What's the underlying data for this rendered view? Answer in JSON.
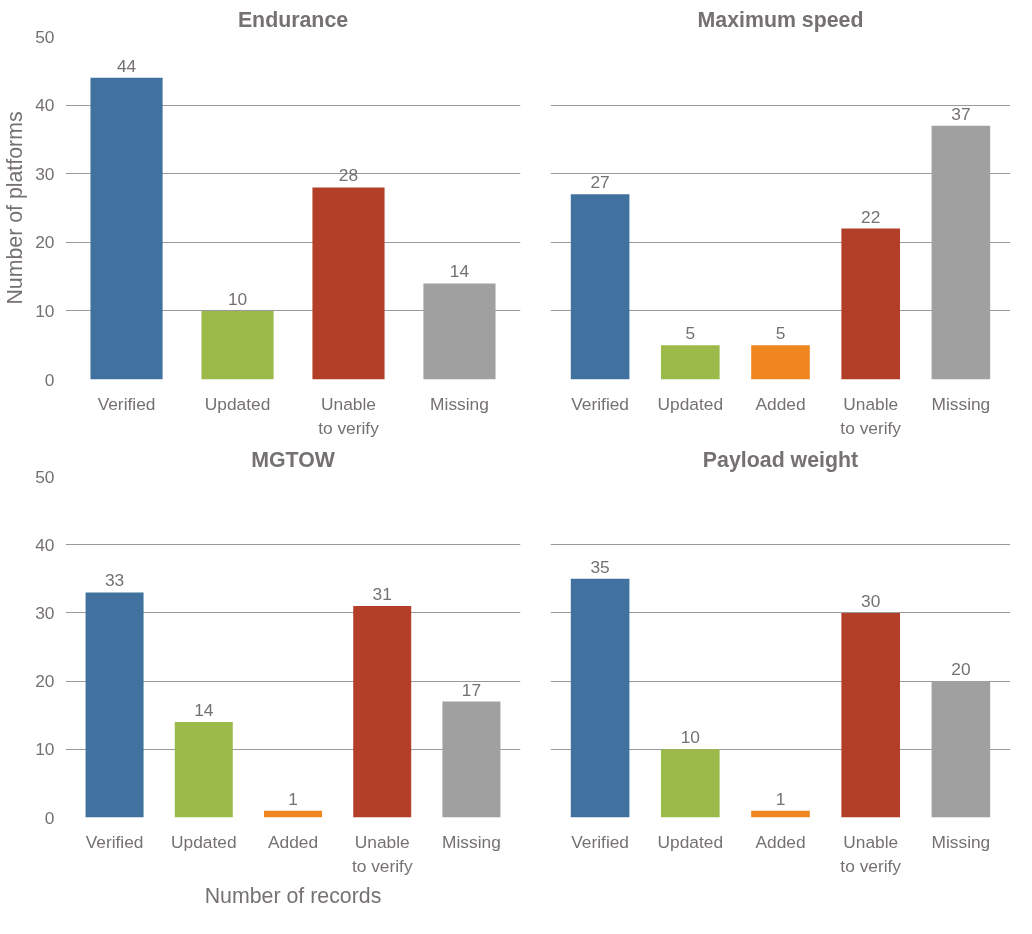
{
  "chart_data": [
    {
      "type": "bar",
      "title": "Endurance",
      "ylabel": "Number of platforms",
      "categories": [
        "Verified",
        "Updated",
        "Unable\nto verify",
        "Missing"
      ],
      "values": [
        44,
        10,
        28,
        14
      ],
      "colors": [
        "#41729f",
        "#9bba4a",
        "#b43f28",
        "#a0a0a0"
      ],
      "ylim": [
        0,
        50
      ],
      "yticks": [
        0,
        10,
        20,
        30,
        40,
        50
      ],
      "grid": "y",
      "data_labels": true
    },
    {
      "type": "bar",
      "title": "Maximum speed",
      "categories": [
        "Verified",
        "Updated",
        "Added",
        "Unable\nto verify",
        "Missing"
      ],
      "values": [
        27,
        5,
        5,
        22,
        37
      ],
      "colors": [
        "#41729f",
        "#9bba4a",
        "#f0861f",
        "#b43f28",
        "#a0a0a0"
      ],
      "ylim": [
        0,
        50
      ],
      "yticks": [
        0,
        10,
        20,
        30,
        40,
        50
      ],
      "grid": "y",
      "data_labels": true,
      "tick_labels": "x"
    },
    {
      "type": "bar",
      "title": "MGTOW",
      "xlabel": "Number of records",
      "categories": [
        "Verified",
        "Updated",
        "Added",
        "Unable\nto verify",
        "Missing"
      ],
      "values": [
        33,
        14,
        1,
        31,
        17
      ],
      "colors": [
        "#41729f",
        "#9bba4a",
        "#f0861f",
        "#b43f28",
        "#a0a0a0"
      ],
      "ylim": [
        0,
        50
      ],
      "yticks": [
        0,
        10,
        20,
        30,
        40,
        50
      ],
      "grid": "y",
      "data_labels": true
    },
    {
      "type": "bar",
      "title": "Payload weight",
      "categories": [
        "Verified",
        "Updated",
        "Added",
        "Unable\nto verify",
        "Missing"
      ],
      "values": [
        35,
        10,
        1,
        30,
        20
      ],
      "colors": [
        "#41729f",
        "#9bba4a",
        "#f0861f",
        "#b43f28",
        "#a0a0a0"
      ],
      "ylim": [
        0,
        50
      ],
      "yticks": [
        0,
        10,
        20,
        30,
        40,
        50
      ],
      "grid": "y",
      "data_labels": true,
      "tick_labels": "x"
    }
  ]
}
